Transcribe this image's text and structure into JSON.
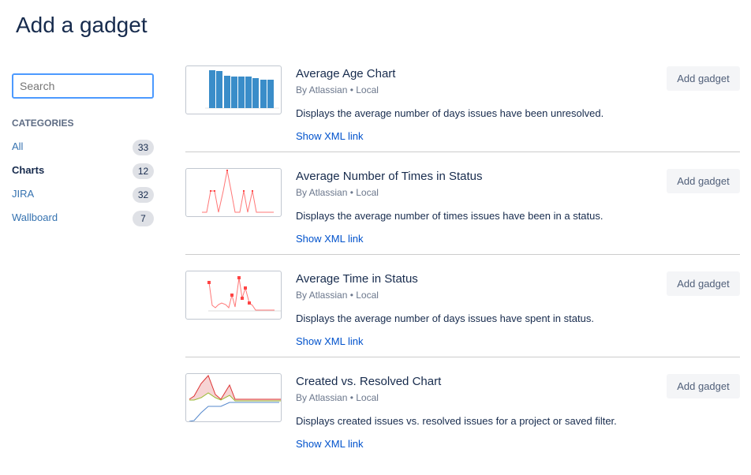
{
  "page_title": "Add a gadget",
  "search": {
    "placeholder": "Search",
    "value": ""
  },
  "categories_heading": "CATEGORIES",
  "categories": [
    {
      "label": "All",
      "count": "33",
      "active": false
    },
    {
      "label": "Charts",
      "count": "12",
      "active": true
    },
    {
      "label": "JIRA",
      "count": "32",
      "active": false
    },
    {
      "label": "Wallboard",
      "count": "7",
      "active": false
    }
  ],
  "gadgets": [
    {
      "title": "Average Age Chart",
      "byline": "By Atlassian • Local",
      "description": "Displays the average number of days issues have been unresolved.",
      "link": "Show XML link",
      "button": "Add gadget",
      "thumbnail": "bar-chart"
    },
    {
      "title": "Average Number of Times in Status",
      "byline": "By Atlassian • Local",
      "description": "Displays the average number of times issues have been in a status.",
      "link": "Show XML link",
      "button": "Add gadget",
      "thumbnail": "line-chart"
    },
    {
      "title": "Average Time in Status",
      "byline": "By Atlassian • Local",
      "description": "Displays the average number of days issues have spent in status.",
      "link": "Show XML link",
      "button": "Add gadget",
      "thumbnail": "line-chart"
    },
    {
      "title": "Created vs. Resolved Chart",
      "byline": "By Atlassian • Local",
      "description": "Displays created issues vs. resolved issues for a project or saved filter.",
      "link": "Show XML link",
      "button": "Add gadget",
      "thumbnail": "area-chart"
    }
  ],
  "colors": {
    "link": "#0052cc",
    "category": "#3572b0",
    "focus": "#4c9aff"
  }
}
